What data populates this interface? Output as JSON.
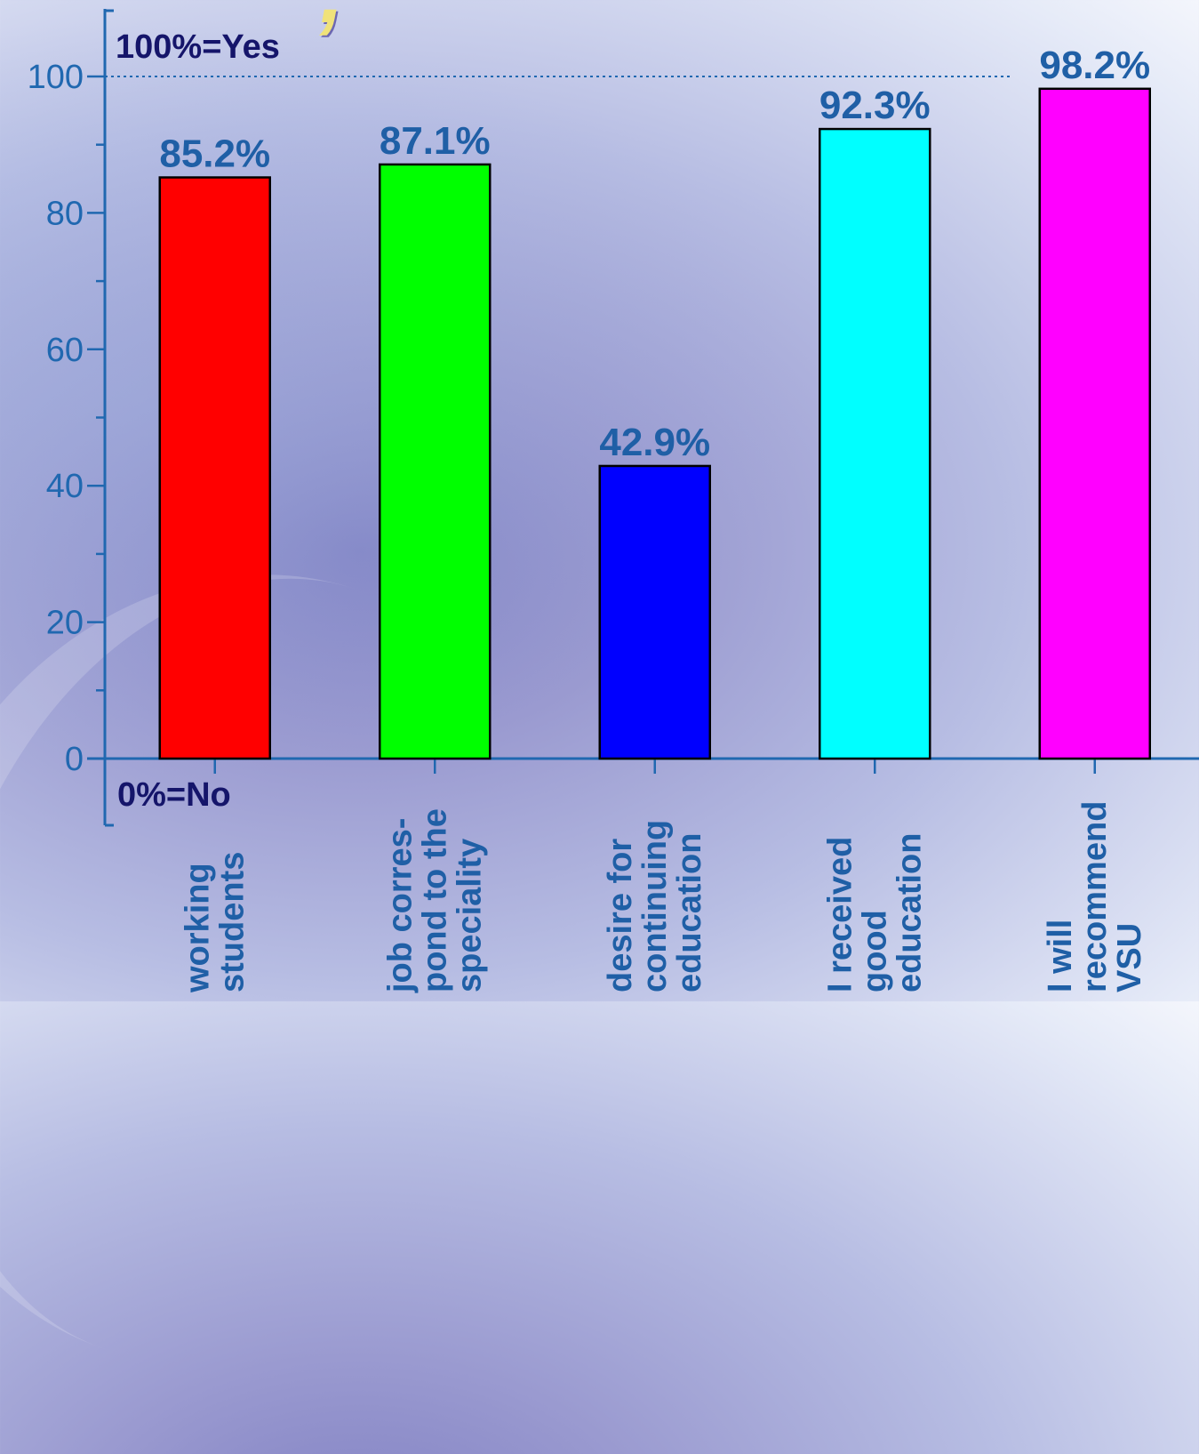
{
  "page": {
    "top_title_fragment": ", ",
    "colors": {
      "axis": "#2068b0",
      "text": "#1f5fa6",
      "annotation": "#15156a"
    }
  },
  "chart_data": {
    "type": "bar",
    "categories": [
      [
        "working",
        "students"
      ],
      [
        "job corres-",
        "pond to the",
        "speciality"
      ],
      [
        "desire for",
        "continuing",
        "education"
      ],
      [
        "I received",
        "good",
        "education"
      ],
      [
        "I will",
        "recommend",
        "VSU"
      ]
    ],
    "values": [
      85.2,
      87.1,
      42.9,
      92.3,
      98.2
    ],
    "value_labels": [
      "85.2%",
      "87.1%",
      "42.9%",
      "92.3%",
      "98.2%"
    ],
    "colors": [
      "#ff0000",
      "#00ff00",
      "#0000ff",
      "#00ffff",
      "#ff00ff"
    ],
    "ylim": [
      0,
      100
    ],
    "yticks": [
      0,
      20,
      40,
      60,
      80,
      100
    ],
    "annotations": {
      "top": "100%=Yes",
      "bottom": "0%=No"
    },
    "reference_line": 100,
    "grid": false
  }
}
